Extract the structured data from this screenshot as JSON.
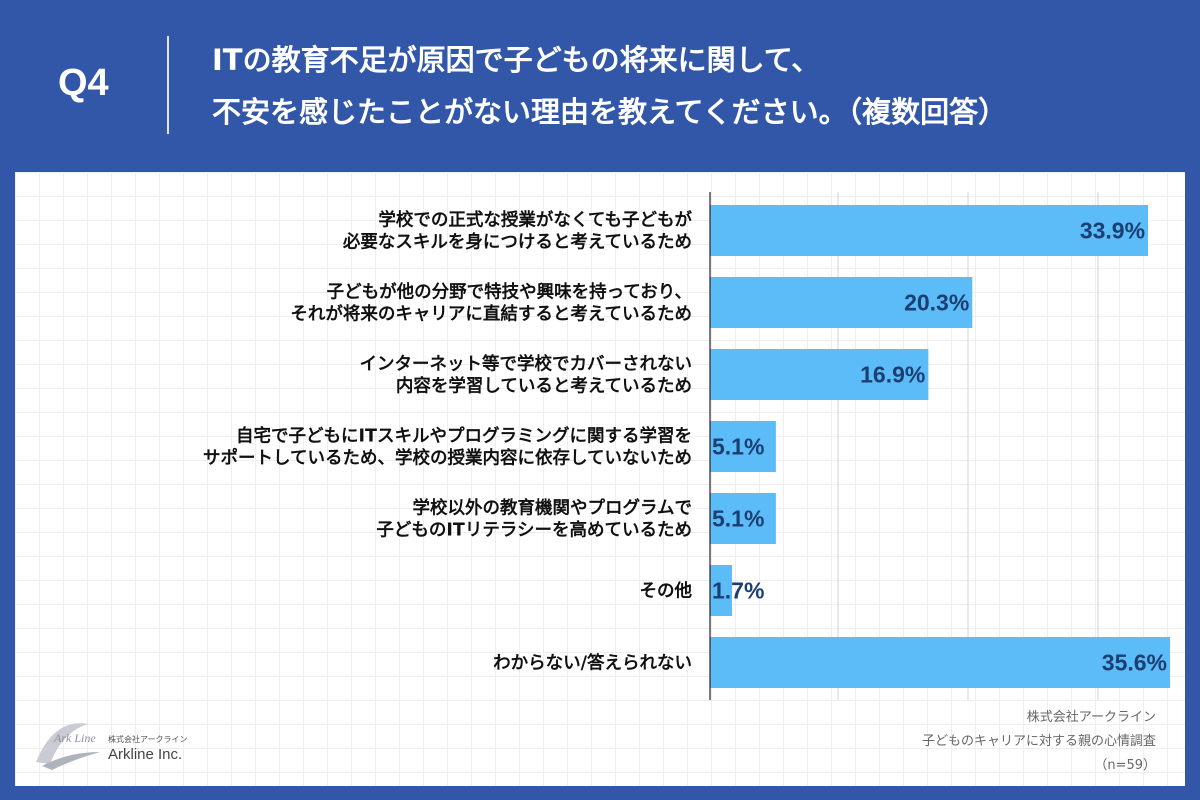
{
  "header": {
    "q_number": "Q4",
    "question_line1": "ITの教育不足が原因で子どもの将来に関して、",
    "question_line2": "不安を感じたことがない理由を教えてください。（複数回答）"
  },
  "chart_data": {
    "type": "bar",
    "orientation": "horizontal",
    "categories": [
      [
        "学校での正式な授業がなくても子どもが",
        "必要なスキルを身につけると考えているため"
      ],
      [
        "子どもが他の分野で特技や興味を持っており、",
        "それが将来のキャリアに直結すると考えているため"
      ],
      [
        "インターネット等で学校でカバーされない",
        "内容を学習していると考えているため"
      ],
      [
        "自宅で子どもにITスキルやプログラミングに関する学習を",
        "サポートしているため、学校の授業内容に依存していないため"
      ],
      [
        "学校以外の教育機関やプログラムで",
        "子どものITリテラシーを高めているため"
      ],
      [
        "その他"
      ],
      [
        "わからない/答えられない"
      ]
    ],
    "values": [
      33.9,
      20.3,
      16.9,
      5.1,
      5.1,
      1.7,
      35.6
    ],
    "value_labels": [
      "33.9%",
      "20.3%",
      "16.9%",
      "5.1%",
      "5.1%",
      "1.7%",
      "35.6%"
    ],
    "unit": "%",
    "xlim": [
      0,
      35.6
    ],
    "grid": true,
    "bar_color": "#5bbcf7",
    "value_label_color": "#1c3f73"
  },
  "footer": {
    "company": "株式会社アークライン",
    "survey": "子どものキャリアに対する親の心情調査",
    "sample": "（n=59）"
  },
  "logo": {
    "brand_small": "株式会社アークライン",
    "brand_name": "Arkline Inc.",
    "mark_text": "Ark Line"
  },
  "colors": {
    "background": "#3257a8",
    "panel": "#ffffff",
    "bar": "#5bbcf7",
    "value_text": "#1c3f73"
  }
}
